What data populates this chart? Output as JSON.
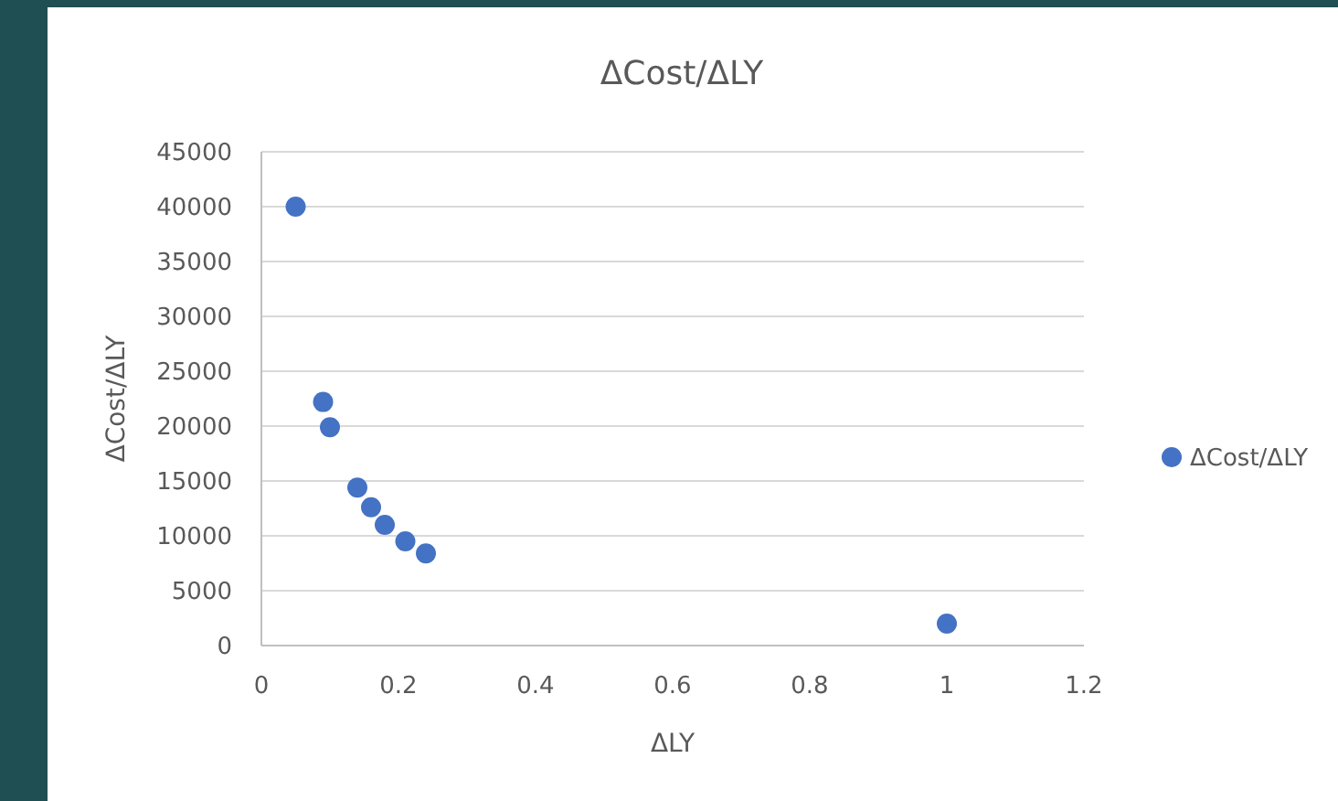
{
  "chart_data": {
    "type": "scatter",
    "title": "ΔCost/ΔLY",
    "xlabel": "ΔLY",
    "ylabel": "ΔCost/ΔLY",
    "x": [
      0.05,
      0.09,
      0.1,
      0.14,
      0.16,
      0.18,
      0.21,
      0.24,
      1
    ],
    "series": [
      {
        "name": "ΔCost/ΔLY",
        "color": "#4472c4",
        "values": [
          40000,
          22200,
          19900,
          14400,
          12600,
          11000,
          9500,
          8400,
          2000
        ]
      }
    ],
    "xlim": [
      0,
      1.2
    ],
    "xticks": [
      0,
      0.2,
      0.4,
      0.6,
      0.8,
      1,
      1.2
    ],
    "ylim": [
      0,
      45000
    ],
    "yticks": [
      0,
      5000,
      10000,
      15000,
      20000,
      25000,
      30000,
      35000,
      40000,
      45000
    ],
    "grid": "y",
    "legend": "right",
    "marker": "circle"
  }
}
